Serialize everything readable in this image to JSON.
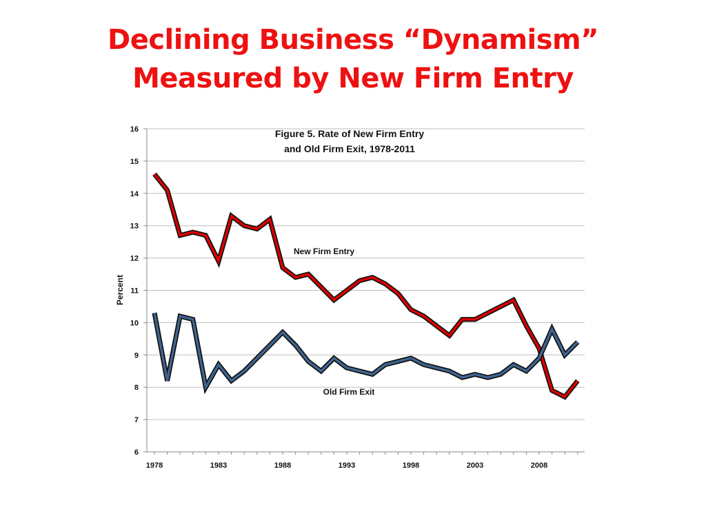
{
  "slide": {
    "title_line1": "Declining Business “Dynamism”",
    "title_line2": "Measured by New Firm Entry"
  },
  "colors": {
    "title": "#ee1111",
    "new_entry_fill": "#dd0000",
    "old_exit_fill": "#3f6590",
    "line_outline": "#111111",
    "grid": "#bdbdbd",
    "axis": "#888888"
  },
  "chart_data": {
    "type": "line",
    "title_line1": "Figure 5.  Rate of New Firm Entry",
    "title_line2": "and Old Firm Exit, 1978-2011",
    "ylabel": "Percent",
    "xlabel": "",
    "xlim": [
      1978,
      2011
    ],
    "ylim": [
      6,
      16
    ],
    "x_tick_labels": [
      "1978",
      "1983",
      "1988",
      "1993",
      "1998",
      "2003",
      "2008"
    ],
    "y_tick_labels": [
      "6",
      "7",
      "8",
      "9",
      "10",
      "11",
      "12",
      "13",
      "14",
      "15",
      "16"
    ],
    "grid": true,
    "x": [
      1978,
      1979,
      1980,
      1981,
      1982,
      1983,
      1984,
      1985,
      1986,
      1987,
      1988,
      1989,
      1990,
      1991,
      1992,
      1993,
      1994,
      1995,
      1996,
      1997,
      1998,
      1999,
      2000,
      2001,
      2002,
      2003,
      2004,
      2005,
      2006,
      2007,
      2008,
      2009,
      2010,
      2011
    ],
    "series": [
      {
        "name": "New Firm Entry",
        "values": [
          14.6,
          14.1,
          12.7,
          12.8,
          12.7,
          11.9,
          13.3,
          13.0,
          12.9,
          13.2,
          11.7,
          11.4,
          11.5,
          11.1,
          10.7,
          11.0,
          11.3,
          11.4,
          11.2,
          10.9,
          10.4,
          10.2,
          9.9,
          9.6,
          10.1,
          10.1,
          10.3,
          10.5,
          10.7,
          9.9,
          9.2,
          7.9,
          7.7,
          8.2
        ]
      },
      {
        "name": "Old Firm Exit",
        "values": [
          10.3,
          8.2,
          10.2,
          10.1,
          8.0,
          8.7,
          8.2,
          8.5,
          8.9,
          9.3,
          9.7,
          9.3,
          8.8,
          8.5,
          8.9,
          8.6,
          8.5,
          8.4,
          8.7,
          8.8,
          8.9,
          8.7,
          8.6,
          8.5,
          8.3,
          8.4,
          8.3,
          8.4,
          8.7,
          8.5,
          8.9,
          9.8,
          9.0,
          9.4
        ]
      }
    ]
  }
}
